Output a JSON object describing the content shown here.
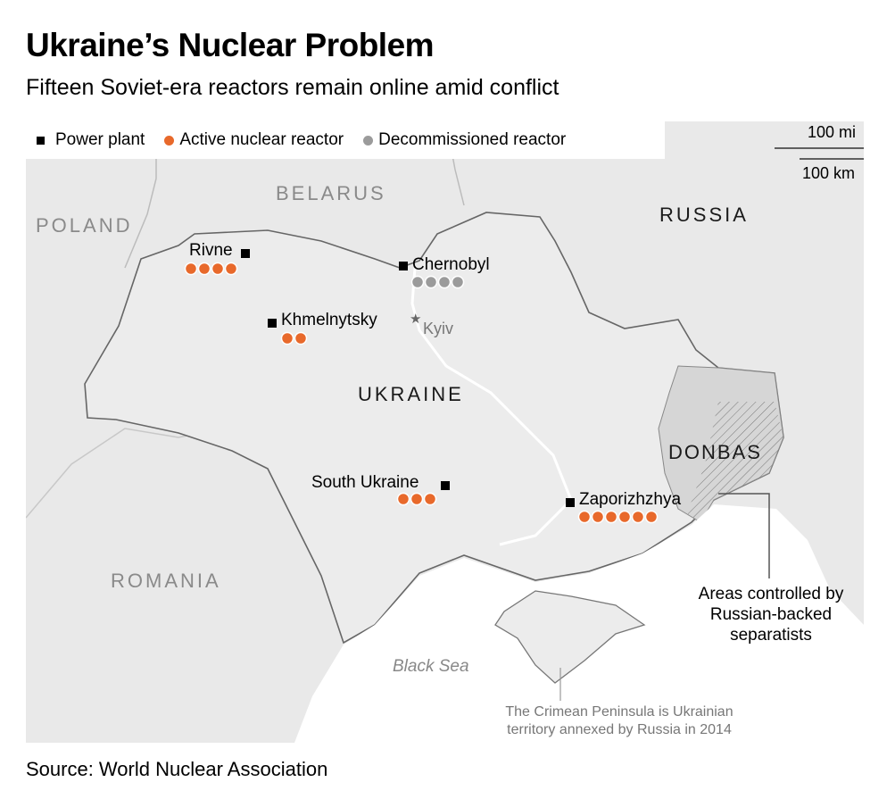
{
  "title": "Ukraine’s Nuclear Problem",
  "subtitle": "Fifteen Soviet-era reactors remain online amid conflict",
  "legend": {
    "power_plant": "Power plant",
    "active": "Active nuclear reactor",
    "decommissioned": "Decommissioned reactor"
  },
  "scale": {
    "miles": "100 mi",
    "km": "100 km"
  },
  "countries": {
    "belarus": "BELARUS",
    "poland": "POLAND",
    "russia": "RUSSIA",
    "ukraine": "UKRAINE",
    "romania": "ROMANIA"
  },
  "region": "DONBAS",
  "sea": "Black Sea",
  "capital": "Kyiv",
  "plants": [
    {
      "name": "Rivne",
      "active": 4,
      "decommissioned": 0
    },
    {
      "name": "Chernobyl",
      "active": 0,
      "decommissioned": 4
    },
    {
      "name": "Khmelnytsky",
      "active": 2,
      "decommissioned": 0
    },
    {
      "name": "South Ukraine",
      "active": 3,
      "decommissioned": 0
    },
    {
      "name": "Zaporizhzhya",
      "active": 6,
      "decommissioned": 0
    }
  ],
  "annotations": {
    "separatists": "Areas controlled by Russian-backed separatists",
    "crimea": "The Crimean Peninsula is Ukrainian territory annexed by Russia in 2014"
  },
  "source": "Source: World Nuclear Association",
  "colors": {
    "active": "#e8692b",
    "decommissioned": "#9b9b9b",
    "land": "#e9e9e9",
    "ukraine": "#ececec",
    "donbas": "#d6d6d6",
    "sea": "#ffffff"
  }
}
